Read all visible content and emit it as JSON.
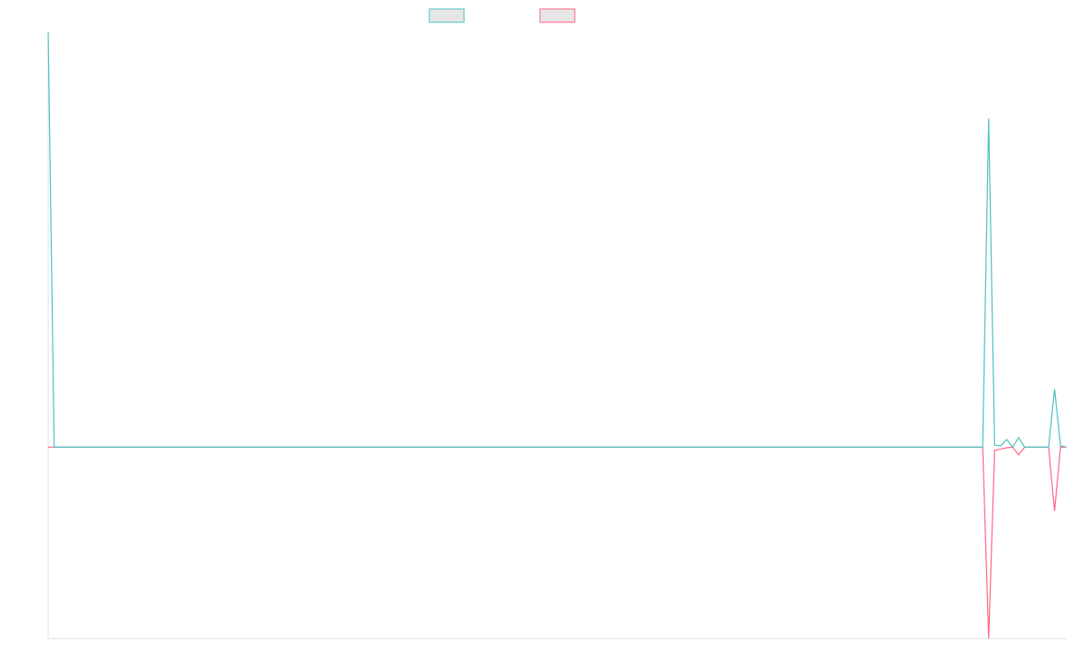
{
  "chart_data": {
    "type": "line",
    "ylim": [
      -30,
      65
    ],
    "series": [
      {
        "color": "#4bc0c0",
        "values": [
          65,
          0,
          0,
          0,
          0,
          0,
          0,
          0,
          0,
          0,
          0,
          0,
          0,
          0,
          0,
          0,
          0,
          0,
          0,
          0,
          0,
          0,
          0,
          0,
          0,
          0,
          0,
          0,
          0,
          0,
          0,
          0,
          0,
          0,
          0,
          0,
          0,
          0,
          0,
          0,
          0,
          0,
          0,
          0,
          0,
          0,
          0,
          0,
          0,
          0,
          0,
          0,
          0,
          0,
          0,
          0,
          0,
          0,
          0,
          0,
          0,
          0,
          0,
          0,
          0,
          0,
          0,
          0,
          0,
          0,
          0,
          0,
          0,
          0,
          0,
          0,
          0,
          0,
          0,
          0,
          0,
          0,
          0,
          0,
          0,
          0,
          0,
          0,
          0,
          0,
          0,
          0,
          0,
          0,
          0,
          0,
          0,
          0,
          0,
          0,
          0,
          0,
          0,
          0,
          0,
          0,
          0,
          0,
          0,
          0,
          0,
          0,
          0,
          0,
          0,
          0,
          0,
          0,
          0,
          0,
          0,
          0,
          0,
          0,
          0,
          0,
          0,
          0,
          0,
          0,
          0,
          0,
          0,
          0,
          0,
          0,
          0,
          0,
          0,
          0,
          0,
          0,
          0,
          0,
          0,
          0,
          0,
          0,
          0,
          0,
          0,
          0,
          0,
          0,
          0,
          0,
          0,
          51.5,
          0.3,
          0.2,
          1.2,
          0,
          1.5,
          0,
          0,
          0,
          0,
          0,
          9.1,
          0.2,
          0
        ]
      },
      {
        "color": "#ff6384",
        "values": [
          0,
          0,
          0,
          0,
          0,
          0,
          0,
          0,
          0,
          0,
          0,
          0,
          0,
          0,
          0,
          0,
          0,
          0,
          0,
          0,
          0,
          0,
          0,
          0,
          0,
          0,
          0,
          0,
          0,
          0,
          0,
          0,
          0,
          0,
          0,
          0,
          0,
          0,
          0,
          0,
          0,
          0,
          0,
          0,
          0,
          0,
          0,
          0,
          0,
          0,
          0,
          0,
          0,
          0,
          0,
          0,
          0,
          0,
          0,
          0,
          0,
          0,
          0,
          0,
          0,
          0,
          0,
          0,
          0,
          0,
          0,
          0,
          0,
          0,
          0,
          0,
          0,
          0,
          0,
          0,
          0,
          0,
          0,
          0,
          0,
          0,
          0,
          0,
          0,
          0,
          0,
          0,
          0,
          0,
          0,
          0,
          0,
          0,
          0,
          0,
          0,
          0,
          0,
          0,
          0,
          0,
          0,
          0,
          0,
          0,
          0,
          0,
          0,
          0,
          0,
          0,
          0,
          0,
          0,
          0,
          0,
          0,
          0,
          0,
          0,
          0,
          0,
          0,
          0,
          0,
          0,
          0,
          0,
          0,
          0,
          0,
          0,
          0,
          0,
          0,
          0,
          0,
          0,
          0,
          0,
          0,
          0,
          0,
          0,
          0,
          0,
          0,
          0,
          0,
          0,
          0,
          0,
          -30,
          -0.5,
          -0.3,
          -0.1,
          0,
          -1.2,
          0,
          0,
          0,
          0,
          0,
          -10,
          0,
          0
        ]
      }
    ]
  }
}
